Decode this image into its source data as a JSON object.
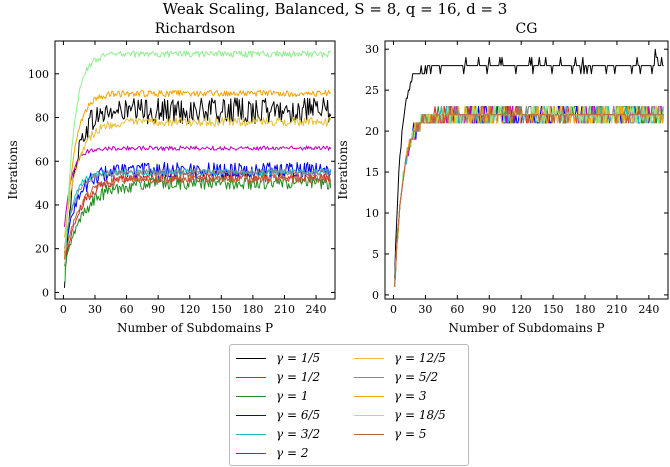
{
  "chart_data": {
    "suptitle": "Weak Scaling, Balanced, S = 8, q = 16, d = 3",
    "legend": [
      {
        "label": "γ = 1/5",
        "color": "#000000"
      },
      {
        "label": "γ = 1/2",
        "color": "#d62728"
      },
      {
        "label": "γ = 1",
        "color": "#228b22"
      },
      {
        "label": "γ = 6/5",
        "color": "#0000ee"
      },
      {
        "label": "γ = 3/2",
        "color": "#17c0c8"
      },
      {
        "label": "γ = 2",
        "color": "#bf00bf"
      },
      {
        "label": "γ = 12/5",
        "color": "#e5c13a"
      },
      {
        "label": "γ = 5/2",
        "color": "#888888"
      },
      {
        "label": "γ = 3",
        "color": "#f5a300"
      },
      {
        "label": "γ = 18/5",
        "color": "#90ee90"
      },
      {
        "label": "γ = 5",
        "color": "#c0603b"
      }
    ],
    "panels": [
      {
        "type": "line",
        "title": "Richardson",
        "xlabel": "Number of Subdomains P",
        "ylabel": "Iterations",
        "xlim": [
          -8,
          258
        ],
        "ylim": [
          -3,
          115
        ],
        "xticks": [
          0,
          30,
          60,
          90,
          120,
          150,
          180,
          210,
          240
        ],
        "yticks": [
          0,
          20,
          40,
          60,
          80,
          100
        ],
        "series_plateau": [
          {
            "name": "γ = 1/5",
            "start": 2,
            "plateau": 83,
            "noise": 6,
            "rise": 9
          },
          {
            "name": "γ = 1/2",
            "start": 12,
            "plateau": 53,
            "noise": 2.5,
            "rise": 15
          },
          {
            "name": "γ = 1",
            "start": 12,
            "plateau": 50,
            "noise": 3,
            "rise": 18
          },
          {
            "name": "γ = 6/5",
            "start": 18,
            "plateau": 56,
            "noise": 3.5,
            "rise": 12
          },
          {
            "name": "γ = 3/2",
            "start": 16,
            "plateau": 55,
            "noise": 1.5,
            "rise": 8
          },
          {
            "name": "γ = 2",
            "start": 30,
            "plateau": 66,
            "noise": 1,
            "rise": 7
          },
          {
            "name": "γ = 12/5",
            "start": 25,
            "plateau": 78,
            "noise": 2,
            "rise": 12
          },
          {
            "name": "γ = 5/2",
            "start": 20,
            "plateau": 55,
            "noise": 1.5,
            "rise": 10
          },
          {
            "name": "γ = 3",
            "start": 15,
            "plateau": 91,
            "noise": 1.5,
            "rise": 9
          },
          {
            "name": "γ = 18/5",
            "start": 5,
            "plateau": 109,
            "noise": 1.5,
            "rise": 8
          },
          {
            "name": "γ = 5",
            "start": 15,
            "plateau": 52,
            "noise": 2,
            "rise": 14
          }
        ]
      },
      {
        "type": "line",
        "title": "CG",
        "xlabel": "Number of Subdomains P",
        "ylabel": "Iterations",
        "xlim": [
          -8,
          258
        ],
        "ylim": [
          -0.5,
          31
        ],
        "xticks": [
          0,
          30,
          60,
          90,
          120,
          150,
          180,
          210,
          240
        ],
        "yticks": [
          0,
          5,
          10,
          15,
          20,
          25,
          30
        ],
        "series_plateau": [
          {
            "name": "γ = 1/5",
            "start": 2,
            "plateau": 28,
            "noise": 0.6,
            "rise": 6
          },
          {
            "name": "γ = 1/2",
            "start": 1,
            "plateau": 22,
            "noise": 0.7,
            "rise": 8
          },
          {
            "name": "γ = 1",
            "start": 1,
            "plateau": 22,
            "noise": 0.7,
            "rise": 8
          },
          {
            "name": "γ = 6/5",
            "start": 1,
            "plateau": 22,
            "noise": 0.8,
            "rise": 8
          },
          {
            "name": "γ = 3/2",
            "start": 1,
            "plateau": 22,
            "noise": 0.7,
            "rise": 8
          },
          {
            "name": "γ = 2",
            "start": 1,
            "plateau": 22,
            "noise": 0.7,
            "rise": 8
          },
          {
            "name": "γ = 12/5",
            "start": 1,
            "plateau": 22,
            "noise": 0.7,
            "rise": 8
          },
          {
            "name": "γ = 5/2",
            "start": 1,
            "plateau": 22,
            "noise": 0.6,
            "rise": 8
          },
          {
            "name": "γ = 3",
            "start": 1,
            "plateau": 22,
            "noise": 0.7,
            "rise": 8
          },
          {
            "name": "γ = 18/5",
            "start": 1,
            "plateau": 22,
            "noise": 0.7,
            "rise": 8
          },
          {
            "name": "γ = 5",
            "start": 1,
            "plateau": 22,
            "noise": 0.6,
            "rise": 8
          }
        ]
      }
    ]
  }
}
